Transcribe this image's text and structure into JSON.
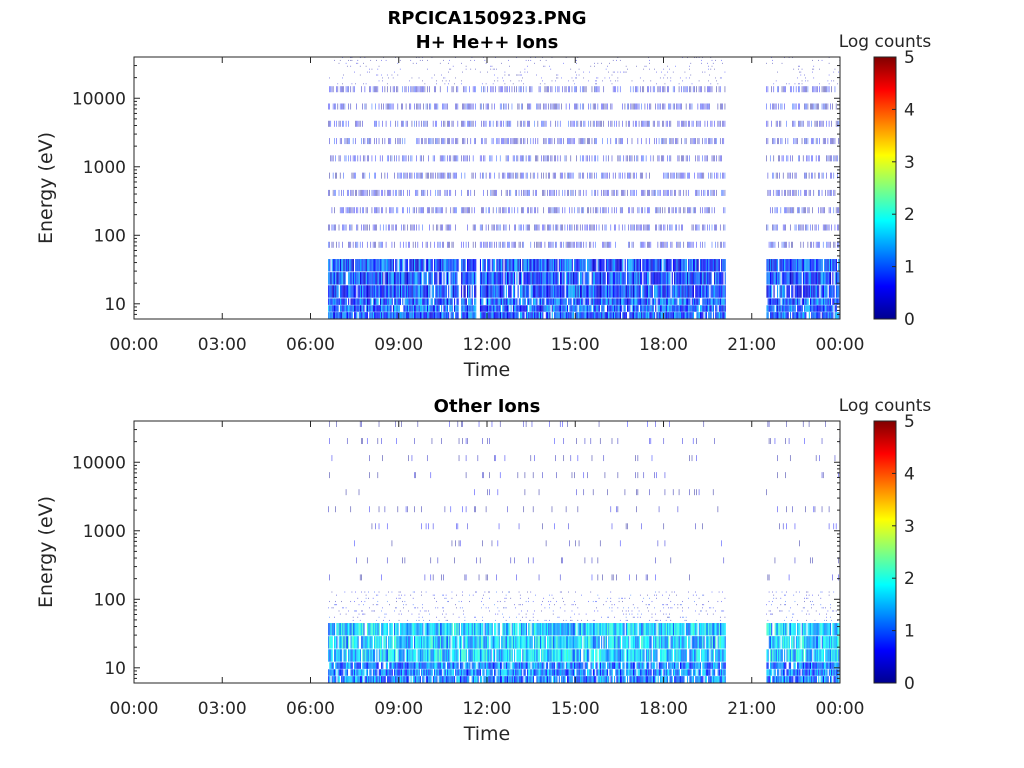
{
  "figure": {
    "filename": "RPCICA150923.PNG"
  },
  "colormap": [
    "#00008f",
    "#0000ff",
    "#0080ff",
    "#00ffff",
    "#80ff80",
    "#ffff00",
    "#ff8000",
    "#ff0000",
    "#800000"
  ],
  "chart_data": [
    {
      "type": "heatmap",
      "title": "H+ He++ Ions",
      "xlabel": "Time",
      "ylabel": "Energy (eV)",
      "x_ticks": [
        "00:00",
        "03:00",
        "06:00",
        "09:00",
        "12:00",
        "15:00",
        "18:00",
        "21:00",
        "00:00"
      ],
      "x_range_hours": [
        0,
        24
      ],
      "y_ticks": [
        "10",
        "100",
        "1000",
        "10000"
      ],
      "y_scale": "log",
      "y_range": [
        6,
        40000
      ],
      "colorbar": {
        "label": "Log counts",
        "ticks": [
          "0",
          "1",
          "2",
          "3",
          "4",
          "5"
        ],
        "range": [
          0,
          5
        ]
      },
      "data_intervals_hours": [
        [
          6.6,
          20.1
        ],
        [
          21.5,
          24
        ]
      ],
      "data_gaps_hours": [
        [
          0,
          6.6
        ],
        [
          11.0,
          11.1
        ],
        [
          11.6,
          11.75
        ],
        [
          20.1,
          21.5
        ]
      ],
      "bands": [
        {
          "energy_eV": [
            6,
            12
          ],
          "log_counts": 1.0
        },
        {
          "energy_eV": [
            12,
            45
          ],
          "log_counts": 0.9
        },
        {
          "energy_eV": [
            45,
            15000
          ],
          "log_counts": 0.4
        },
        {
          "energy_eV": [
            15000,
            40000
          ],
          "log_counts": 0.15
        }
      ],
      "grid": false
    },
    {
      "type": "heatmap",
      "title": "Other Ions",
      "xlabel": "Time",
      "ylabel": "Energy (eV)",
      "x_ticks": [
        "00:00",
        "03:00",
        "06:00",
        "09:00",
        "12:00",
        "15:00",
        "18:00",
        "21:00",
        "00:00"
      ],
      "x_range_hours": [
        0,
        24
      ],
      "y_ticks": [
        "10",
        "100",
        "1000",
        "10000"
      ],
      "y_scale": "log",
      "y_range": [
        6,
        40000
      ],
      "colorbar": {
        "label": "Log counts",
        "ticks": [
          "0",
          "1",
          "2",
          "3",
          "4",
          "5"
        ],
        "range": [
          0,
          5
        ]
      },
      "data_intervals_hours": [
        [
          6.6,
          20.1
        ],
        [
          21.5,
          24
        ]
      ],
      "data_gaps_hours": [
        [
          0,
          6.6
        ],
        [
          20.1,
          21.5
        ]
      ],
      "bands": [
        {
          "energy_eV": [
            6,
            12
          ],
          "log_counts": 1.2
        },
        {
          "energy_eV": [
            12,
            45
          ],
          "log_counts": 1.6
        },
        {
          "energy_eV": [
            45,
            130
          ],
          "log_counts": 0.5
        },
        {
          "energy_eV": [
            130,
            40000
          ],
          "log_counts": 0.1
        }
      ],
      "grid": false
    }
  ]
}
